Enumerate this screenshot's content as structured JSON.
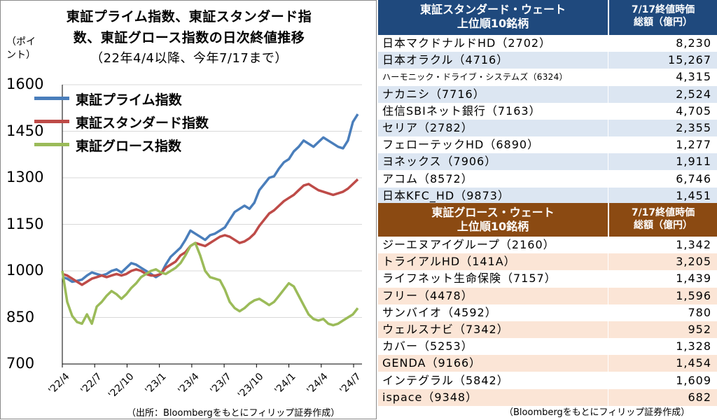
{
  "chart_data": {
    "type": "line",
    "title": [
      "東証プライム指数、東証スタンダード指",
      "数、東証グロース指数の日次終値推移",
      "（22年4/4以降、今年7/17まで）"
    ],
    "ylabel": [
      "（ポイ",
      "ント）"
    ],
    "ylim": [
      700,
      1600
    ],
    "yticks": [
      "1600",
      "1450",
      "1300",
      "1150",
      "1000",
      "850",
      "700"
    ],
    "xticks": [
      "'22/4",
      "'22/7",
      "'22/10",
      "'23/1",
      "'23/4",
      "'23/7",
      "'23/10",
      "'24/1",
      "'24/4",
      "'24/7"
    ],
    "legend": "top-left",
    "grid": true,
    "series": [
      {
        "name": "東証プライム指数",
        "color": "#4a7ebb",
        "values": [
          980,
          975,
          965,
          968,
          972,
          985,
          995,
          990,
          985,
          990,
          1000,
          1005,
          995,
          1010,
          1025,
          1020,
          1010,
          1000,
          990,
          980,
          990,
          1020,
          1045,
          1060,
          1075,
          1100,
          1130,
          1120,
          1110,
          1100,
          1115,
          1120,
          1130,
          1140,
          1165,
          1190,
          1200,
          1210,
          1200,
          1220,
          1260,
          1280,
          1300,
          1305,
          1330,
          1350,
          1360,
          1385,
          1400,
          1420,
          1410,
          1400,
          1415,
          1430,
          1420,
          1410,
          1400,
          1395,
          1420,
          1480,
          1505
        ]
      },
      {
        "name": "東証スタンダード指数",
        "color": "#be4b48",
        "values": [
          990,
          985,
          975,
          965,
          955,
          965,
          975,
          980,
          985,
          980,
          985,
          990,
          985,
          990,
          1000,
          1005,
          1000,
          990,
          985,
          985,
          990,
          1010,
          1020,
          1030,
          1050,
          1060,
          1080,
          1090,
          1085,
          1080,
          1090,
          1100,
          1110,
          1115,
          1110,
          1100,
          1090,
          1095,
          1105,
          1120,
          1145,
          1165,
          1185,
          1195,
          1210,
          1225,
          1235,
          1245,
          1260,
          1275,
          1280,
          1270,
          1260,
          1255,
          1250,
          1245,
          1250,
          1255,
          1265,
          1280,
          1295
        ]
      },
      {
        "name": "東証グロース指数",
        "color": "#9bbb59",
        "values": [
          1000,
          900,
          855,
          835,
          830,
          860,
          830,
          885,
          900,
          920,
          935,
          925,
          910,
          925,
          945,
          960,
          980,
          990,
          1000,
          1005,
          995,
          990,
          1000,
          1010,
          1025,
          1050,
          1080,
          1090,
          1050,
          1000,
          980,
          975,
          970,
          940,
          900,
          880,
          870,
          880,
          895,
          905,
          910,
          900,
          890,
          900,
          920,
          940,
          960,
          950,
          920,
          890,
          860,
          845,
          840,
          845,
          830,
          825,
          830,
          840,
          850,
          860,
          880
        ]
      }
    ]
  },
  "chart_source": "（出所：Bloombergをもとにフィリップ証券作成）",
  "standard_table": {
    "header_name": [
      "東証スタンダード・ウェート",
      "上位順10銘柄"
    ],
    "header_value": [
      "7/17終値時価",
      "総額（億円）"
    ],
    "header_color": "#1f497d",
    "stripe_color": "#dce6f2",
    "rows": [
      {
        "name": "日本マクドナルドHD（2702）",
        "value": "8,230"
      },
      {
        "name": "日本オラクル（4716）",
        "value": "15,267"
      },
      {
        "name": "ハーモニック・ドライブ・システムズ（6324）",
        "value": "4,315"
      },
      {
        "name": "ナカニシ（7716）",
        "value": "2,524"
      },
      {
        "name": "住信SBIネット銀行（7163）",
        "value": "4,705"
      },
      {
        "name": "セリア（2782）",
        "value": "2,355"
      },
      {
        "name": "フェローテックHD（6890）",
        "value": "1,277"
      },
      {
        "name": "ヨネックス（7906）",
        "value": "1,911"
      },
      {
        "name": "アコム（8572）",
        "value": "6,746"
      },
      {
        "name": "日本KFC_HD（9873）",
        "value": "1,451"
      }
    ]
  },
  "growth_table": {
    "header_name": [
      "東証グロース・ウェート",
      "上位順10銘柄"
    ],
    "header_value": [
      "7/17終値時価",
      "総額（億円）"
    ],
    "header_color": "#8b4a12",
    "stripe_color": "#fbe5d6",
    "rows": [
      {
        "name": "ジーエヌアイグループ（2160）",
        "value": "1,342"
      },
      {
        "name": "トライアルHD（141A）",
        "value": "3,205"
      },
      {
        "name": "ライフネット生命保険（7157）",
        "value": "1,439"
      },
      {
        "name": "フリー（4478）",
        "value": "1,596"
      },
      {
        "name": "サンバイオ（4592）",
        "value": "780"
      },
      {
        "name": "ウェルスナビ（7342）",
        "value": "952"
      },
      {
        "name": "カバー（5253）",
        "value": "1,328"
      },
      {
        "name": "GENDA（9166）",
        "value": "1,454"
      },
      {
        "name": "インテグラル（5842）",
        "value": "1,609"
      },
      {
        "name": "ispace（9348）",
        "value": "682"
      }
    ]
  },
  "table_source": "（Bloombergをもとにフィリップ証券作成）"
}
